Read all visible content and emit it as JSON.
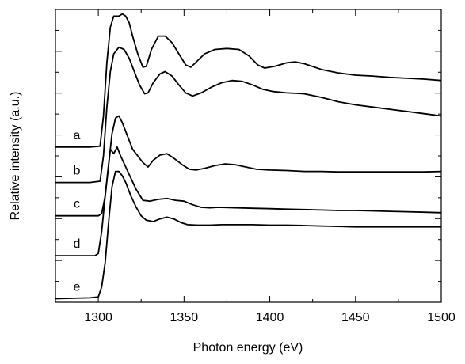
{
  "chart_data": {
    "type": "line",
    "title": "",
    "xlabel": "Photon energy (eV)",
    "ylabel": "Relative intensity (a.u.)",
    "xlim": [
      1275,
      1500
    ],
    "x_ticks": [
      1300,
      1350,
      1400,
      1450,
      1500
    ],
    "y_ticks_labeled": false,
    "grid": false,
    "legend": "none",
    "ylim": [
      0,
      6.6
    ],
    "series": [
      {
        "name": "a",
        "color": "#000000",
        "points": [
          [
            1275,
            3.5
          ],
          [
            1295,
            3.5
          ],
          [
            1301,
            3.52
          ],
          [
            1303,
            4.2
          ],
          [
            1305,
            5.4
          ],
          [
            1307,
            6.2
          ],
          [
            1309,
            6.45
          ],
          [
            1312,
            6.45
          ],
          [
            1314,
            6.5
          ],
          [
            1316,
            6.45
          ],
          [
            1318,
            6.3
          ],
          [
            1320,
            6.0
          ],
          [
            1323,
            5.6
          ],
          [
            1326,
            5.3
          ],
          [
            1328,
            5.32
          ],
          [
            1331,
            5.7
          ],
          [
            1335,
            6.0
          ],
          [
            1339,
            6.0
          ],
          [
            1343,
            5.85
          ],
          [
            1347,
            5.6
          ],
          [
            1351,
            5.35
          ],
          [
            1354,
            5.3
          ],
          [
            1358,
            5.45
          ],
          [
            1362,
            5.6
          ],
          [
            1368,
            5.7
          ],
          [
            1375,
            5.72
          ],
          [
            1382,
            5.7
          ],
          [
            1388,
            5.55
          ],
          [
            1393,
            5.35
          ],
          [
            1397,
            5.28
          ],
          [
            1403,
            5.32
          ],
          [
            1410,
            5.4
          ],
          [
            1415,
            5.42
          ],
          [
            1420,
            5.38
          ],
          [
            1430,
            5.25
          ],
          [
            1440,
            5.17
          ],
          [
            1450,
            5.12
          ],
          [
            1460,
            5.1
          ],
          [
            1470,
            5.07
          ],
          [
            1480,
            5.05
          ],
          [
            1490,
            5.03
          ],
          [
            1500,
            5.0
          ]
        ]
      },
      {
        "name": "b",
        "color": "#000000",
        "points": [
          [
            1275,
            2.7
          ],
          [
            1295,
            2.7
          ],
          [
            1301,
            2.73
          ],
          [
            1303,
            3.3
          ],
          [
            1305,
            4.4
          ],
          [
            1307,
            5.2
          ],
          [
            1309,
            5.6
          ],
          [
            1312,
            5.75
          ],
          [
            1315,
            5.7
          ],
          [
            1318,
            5.5
          ],
          [
            1321,
            5.2
          ],
          [
            1324,
            4.9
          ],
          [
            1327,
            4.7
          ],
          [
            1329,
            4.72
          ],
          [
            1332,
            4.95
          ],
          [
            1336,
            5.15
          ],
          [
            1339,
            5.2
          ],
          [
            1343,
            5.1
          ],
          [
            1347,
            4.9
          ],
          [
            1351,
            4.72
          ],
          [
            1355,
            4.65
          ],
          [
            1360,
            4.72
          ],
          [
            1366,
            4.85
          ],
          [
            1372,
            4.95
          ],
          [
            1378,
            5.0
          ],
          [
            1384,
            4.98
          ],
          [
            1390,
            4.9
          ],
          [
            1396,
            4.8
          ],
          [
            1402,
            4.75
          ],
          [
            1410,
            4.72
          ],
          [
            1420,
            4.7
          ],
          [
            1430,
            4.62
          ],
          [
            1440,
            4.52
          ],
          [
            1450,
            4.45
          ],
          [
            1460,
            4.4
          ],
          [
            1470,
            4.35
          ],
          [
            1480,
            4.3
          ],
          [
            1490,
            4.25
          ],
          [
            1500,
            4.2
          ]
        ]
      },
      {
        "name": "c",
        "color": "#000000",
        "points": [
          [
            1275,
            1.95
          ],
          [
            1300,
            1.95
          ],
          [
            1302,
            2.0
          ],
          [
            1304,
            2.4
          ],
          [
            1306,
            3.1
          ],
          [
            1308,
            3.8
          ],
          [
            1310,
            4.15
          ],
          [
            1312,
            4.2
          ],
          [
            1314,
            4.05
          ],
          [
            1317,
            3.75
          ],
          [
            1320,
            3.45
          ],
          [
            1323,
            3.3
          ],
          [
            1326,
            3.15
          ],
          [
            1329,
            3.05
          ],
          [
            1332,
            3.2
          ],
          [
            1336,
            3.32
          ],
          [
            1340,
            3.35
          ],
          [
            1344,
            3.25
          ],
          [
            1349,
            3.1
          ],
          [
            1353,
            3.0
          ],
          [
            1357,
            2.98
          ],
          [
            1362,
            3.02
          ],
          [
            1368,
            3.08
          ],
          [
            1374,
            3.12
          ],
          [
            1380,
            3.1
          ],
          [
            1386,
            3.05
          ],
          [
            1392,
            3.0
          ],
          [
            1400,
            2.98
          ],
          [
            1410,
            2.97
          ],
          [
            1420,
            2.95
          ],
          [
            1430,
            2.95
          ],
          [
            1440,
            2.94
          ],
          [
            1450,
            2.94
          ],
          [
            1460,
            2.94
          ],
          [
            1470,
            2.94
          ],
          [
            1480,
            2.94
          ],
          [
            1490,
            2.94
          ],
          [
            1500,
            2.95
          ]
        ]
      },
      {
        "name": "d",
        "color": "#000000",
        "points": [
          [
            1275,
            1.05
          ],
          [
            1298,
            1.05
          ],
          [
            1300,
            1.1
          ],
          [
            1302,
            1.6
          ],
          [
            1304,
            2.4
          ],
          [
            1306,
            3.1
          ],
          [
            1307,
            3.45
          ],
          [
            1309,
            3.35
          ],
          [
            1311,
            3.5
          ],
          [
            1313,
            3.3
          ],
          [
            1316,
            3.05
          ],
          [
            1319,
            2.8
          ],
          [
            1322,
            2.55
          ],
          [
            1326,
            2.3
          ],
          [
            1330,
            2.28
          ],
          [
            1335,
            2.32
          ],
          [
            1340,
            2.34
          ],
          [
            1345,
            2.3
          ],
          [
            1350,
            2.28
          ],
          [
            1355,
            2.2
          ],
          [
            1360,
            2.14
          ],
          [
            1365,
            2.13
          ],
          [
            1370,
            2.14
          ],
          [
            1380,
            2.13
          ],
          [
            1390,
            2.12
          ],
          [
            1400,
            2.11
          ],
          [
            1410,
            2.1
          ],
          [
            1420,
            2.09
          ],
          [
            1430,
            2.08
          ],
          [
            1440,
            2.07
          ],
          [
            1450,
            2.07
          ],
          [
            1460,
            2.06
          ],
          [
            1470,
            2.05
          ],
          [
            1480,
            2.04
          ],
          [
            1490,
            2.03
          ],
          [
            1500,
            2.02
          ]
        ]
      },
      {
        "name": "e",
        "color": "#000000",
        "points": [
          [
            1275,
            0.08
          ],
          [
            1295,
            0.1
          ],
          [
            1300,
            0.12
          ],
          [
            1302,
            0.35
          ],
          [
            1304,
            0.9
          ],
          [
            1306,
            1.8
          ],
          [
            1308,
            2.6
          ],
          [
            1310,
            2.95
          ],
          [
            1312,
            2.95
          ],
          [
            1314,
            2.85
          ],
          [
            1316,
            2.7
          ],
          [
            1319,
            2.4
          ],
          [
            1322,
            2.15
          ],
          [
            1325,
            1.95
          ],
          [
            1328,
            1.85
          ],
          [
            1332,
            1.82
          ],
          [
            1336,
            1.88
          ],
          [
            1340,
            1.92
          ],
          [
            1344,
            1.88
          ],
          [
            1348,
            1.8
          ],
          [
            1352,
            1.75
          ],
          [
            1358,
            1.74
          ],
          [
            1365,
            1.74
          ],
          [
            1372,
            1.75
          ],
          [
            1380,
            1.75
          ],
          [
            1390,
            1.75
          ],
          [
            1400,
            1.74
          ],
          [
            1410,
            1.74
          ],
          [
            1420,
            1.73
          ],
          [
            1430,
            1.72
          ],
          [
            1440,
            1.71
          ],
          [
            1450,
            1.7
          ],
          [
            1460,
            1.7
          ],
          [
            1470,
            1.7
          ],
          [
            1480,
            1.7
          ],
          [
            1490,
            1.7
          ],
          [
            1500,
            1.7
          ]
        ]
      }
    ]
  }
}
